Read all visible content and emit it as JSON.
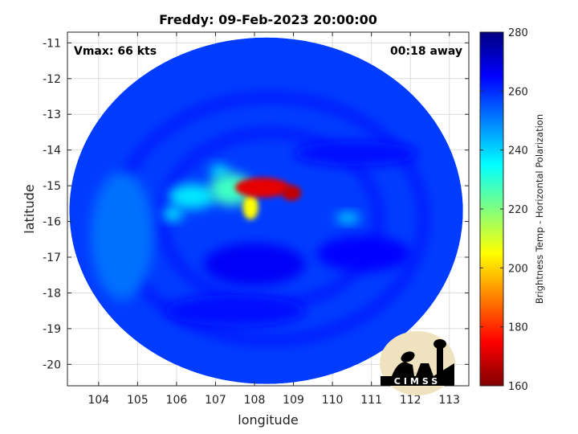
{
  "chart_data": {
    "type": "heatmap",
    "title": "Freddy: 09-Feb-2023 20:00:00",
    "xlabel": "longitude",
    "ylabel": "latitude",
    "xlim": [
      103.2,
      113.5
    ],
    "ylim": [
      -20.6,
      -10.7
    ],
    "xticks": [
      104,
      105,
      106,
      107,
      108,
      109,
      110,
      111,
      112,
      113
    ],
    "yticks": [
      -11,
      -12,
      -13,
      -14,
      -15,
      -16,
      -17,
      -18,
      -19,
      -20
    ],
    "grid": true,
    "annotations": {
      "top_left": "Vmax: 66 kts",
      "top_right": "00:18 away"
    },
    "colorbar": {
      "label": "Brightness Temp - Horizontal Polarization",
      "range": [
        160,
        280
      ],
      "ticks": [
        280,
        260,
        240,
        220,
        200,
        180,
        160
      ],
      "colormap": "jet",
      "colors": [
        "#800000",
        "#ff0000",
        "#ff8000",
        "#ffff00",
        "#80ff80",
        "#00ffff",
        "#0080ff",
        "#0000ff",
        "#000080"
      ]
    },
    "swath": {
      "center_lon": 108.3,
      "center_lat": -15.7,
      "radius_lon": 5.05,
      "radius_lat": 4.85,
      "background_temp": 258
    },
    "features": [
      {
        "lon": 108.2,
        "lat": -15.05,
        "rx": 0.7,
        "ry": 0.28,
        "temp": 172
      },
      {
        "lon": 108.95,
        "lat": -15.2,
        "rx": 0.25,
        "ry": 0.22,
        "temp": 168
      },
      {
        "lon": 107.9,
        "lat": -15.6,
        "rx": 0.2,
        "ry": 0.35,
        "temp": 205
      },
      {
        "lon": 107.4,
        "lat": -15.1,
        "rx": 0.55,
        "ry": 0.45,
        "temp": 228
      },
      {
        "lon": 106.4,
        "lat": -15.3,
        "rx": 0.6,
        "ry": 0.35,
        "temp": 238
      },
      {
        "lon": 105.9,
        "lat": -15.8,
        "rx": 0.25,
        "ry": 0.18,
        "temp": 236
      },
      {
        "lon": 107.1,
        "lat": -14.6,
        "rx": 0.25,
        "ry": 0.2,
        "temp": 240
      },
      {
        "lon": 110.4,
        "lat": -15.9,
        "rx": 0.3,
        "ry": 0.15,
        "temp": 240
      },
      {
        "lon": 108.0,
        "lat": -17.2,
        "rx": 1.3,
        "ry": 0.6,
        "temp": 266
      },
      {
        "lon": 107.5,
        "lat": -18.5,
        "rx": 1.8,
        "ry": 0.45,
        "temp": 264
      },
      {
        "lon": 110.6,
        "lat": -14.1,
        "rx": 1.6,
        "ry": 0.35,
        "temp": 264
      },
      {
        "lon": 110.8,
        "lat": -16.9,
        "rx": 1.2,
        "ry": 0.5,
        "temp": 265
      },
      {
        "lon": 104.6,
        "lat": -16.4,
        "rx": 0.8,
        "ry": 1.8,
        "temp": 252
      }
    ]
  },
  "logo": {
    "text": "CIMSS"
  }
}
